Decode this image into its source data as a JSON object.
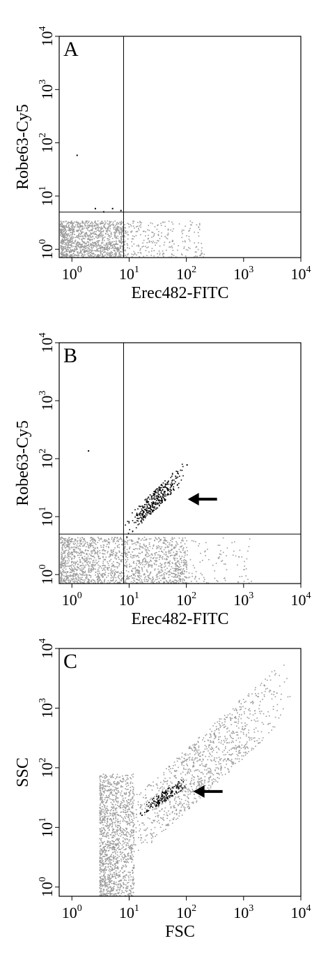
{
  "chart_data": [
    {
      "type": "scatter",
      "panel_label": "A",
      "xlabel": "Erec482-FITC",
      "ylabel": "Robe63-Cy5",
      "x_scale": "log",
      "y_scale": "log",
      "xlim": [
        0.6,
        10000
      ],
      "ylim": [
        0.7,
        10000
      ],
      "x_ticks": [
        {
          "b": "10",
          "e": "0"
        },
        {
          "b": "10",
          "e": "1"
        },
        {
          "b": "10",
          "e": "2"
        },
        {
          "b": "10",
          "e": "3"
        },
        {
          "b": "10",
          "e": "4"
        }
      ],
      "y_ticks": [
        {
          "b": "10",
          "e": "0"
        },
        {
          "b": "10",
          "e": "1"
        },
        {
          "b": "10",
          "e": "2"
        },
        {
          "b": "10",
          "e": "3"
        },
        {
          "b": "10",
          "e": "4"
        }
      ],
      "gate": {
        "x": 8,
        "y": 5
      },
      "populations": [
        {
          "color": "#9a9a9a",
          "x_range": [
            0.6,
            8
          ],
          "y_range": [
            0.7,
            3.5
          ],
          "count": 1300
        },
        {
          "color": "#9a9a9a",
          "x_range": [
            8,
            200
          ],
          "y_range": [
            0.7,
            3.5
          ],
          "count": 260
        }
      ],
      "points": [
        [
          1.2,
          60
        ],
        [
          2.5,
          6
        ],
        [
          5,
          6
        ],
        [
          7,
          5.5
        ],
        [
          3.5,
          5.2
        ]
      ],
      "arrow": null
    },
    {
      "type": "scatter",
      "panel_label": "B",
      "xlabel": "Erec482-FITC",
      "ylabel": "Robe63-Cy5",
      "x_scale": "log",
      "y_scale": "log",
      "xlim": [
        0.6,
        10000
      ],
      "ylim": [
        0.7,
        10000
      ],
      "x_ticks": [
        {
          "b": "10",
          "e": "0"
        },
        {
          "b": "10",
          "e": "1"
        },
        {
          "b": "10",
          "e": "2"
        },
        {
          "b": "10",
          "e": "3"
        },
        {
          "b": "10",
          "e": "4"
        }
      ],
      "y_ticks": [
        {
          "b": "10",
          "e": "0"
        },
        {
          "b": "10",
          "e": "1"
        },
        {
          "b": "10",
          "e": "2"
        },
        {
          "b": "10",
          "e": "3"
        },
        {
          "b": "10",
          "e": "4"
        }
      ],
      "gate": {
        "x": 8,
        "y": 5
      },
      "populations": [
        {
          "color": "#9a9a9a",
          "x_range": [
            0.6,
            100
          ],
          "y_range": [
            0.7,
            4.5
          ],
          "count": 1700
        },
        {
          "color": "#9a9a9a",
          "x_range": [
            60,
            1500
          ],
          "y_range": [
            0.7,
            4.5
          ],
          "count": 140
        },
        {
          "color": "#000000",
          "x_range": [
            8,
            90
          ],
          "y_range": [
            6,
            60
          ],
          "count": 360,
          "diagonal": true
        }
      ],
      "points": [
        [
          1.9,
          140
        ],
        [
          100,
          80
        ]
      ],
      "arrow": {
        "x": 80,
        "y": 20
      }
    },
    {
      "type": "scatter",
      "panel_label": "C",
      "xlabel": "FSC",
      "ylabel": "SSC",
      "x_scale": "log",
      "y_scale": "log",
      "xlim": [
        0.6,
        10000
      ],
      "ylim": [
        0.7,
        10000
      ],
      "x_ticks": [
        {
          "b": "10",
          "e": "0"
        },
        {
          "b": "10",
          "e": "1"
        },
        {
          "b": "10",
          "e": "2"
        },
        {
          "b": "10",
          "e": "3"
        },
        {
          "b": "10",
          "e": "4"
        }
      ],
      "y_ticks": [
        {
          "b": "10",
          "e": "0"
        },
        {
          "b": "10",
          "e": "1"
        },
        {
          "b": "10",
          "e": "2"
        },
        {
          "b": "10",
          "e": "3"
        },
        {
          "b": "10",
          "e": "4"
        }
      ],
      "gate": null,
      "populations": [
        {
          "color": "#9a9a9a",
          "x_range": [
            3,
            12
          ],
          "y_range": [
            0.7,
            80
          ],
          "count": 1300
        },
        {
          "color": "#9a9a9a",
          "x_range": [
            3,
            8000
          ],
          "y_range": [
            3,
            3000
          ],
          "count": 1100,
          "diagonal": true
        },
        {
          "color": "#000000",
          "x_range": [
            15,
            100
          ],
          "y_range": [
            18,
            60
          ],
          "count": 170,
          "diagonal": true
        }
      ],
      "points": [],
      "arrow": {
        "x": 100,
        "y": 40
      }
    }
  ]
}
